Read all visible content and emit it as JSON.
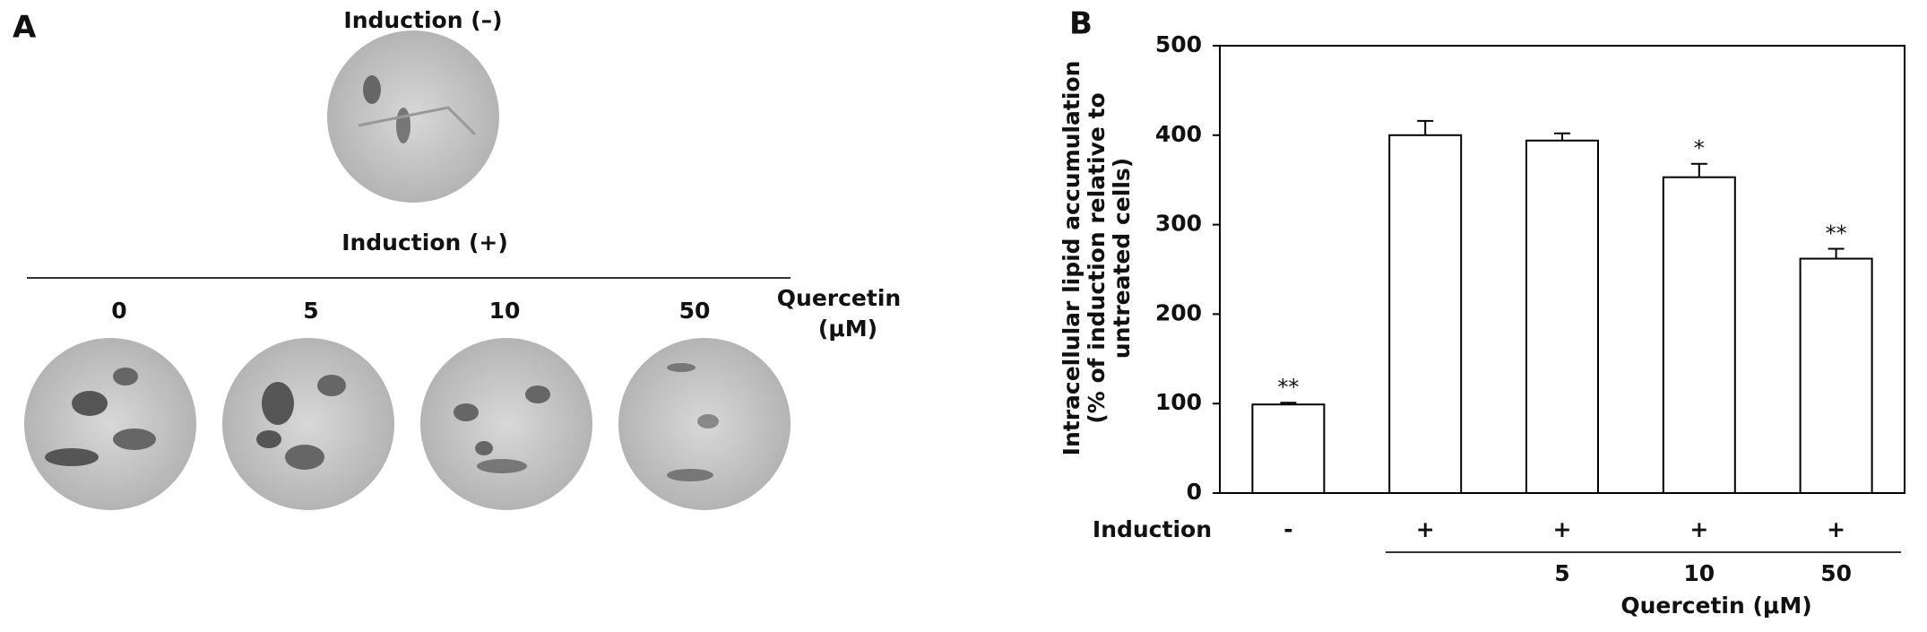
{
  "panel_a": {
    "label": "A",
    "top_label": "Induction (–)",
    "bottom_label": "Induction (+)",
    "concentrations": [
      "0",
      "5",
      "10",
      "50"
    ],
    "quercetin_label": [
      "Quercetin",
      "(μM)"
    ]
  },
  "chart_data": {
    "type": "bar",
    "panel_label": "B",
    "y_label": [
      "Intracellular lipid accumulation",
      "(% of induction relative to",
      "untreated cells)"
    ],
    "induction_label": "Induction",
    "categories": [
      "-",
      "+",
      "+",
      "+",
      "+"
    ],
    "quercetin": [
      null,
      null,
      "5",
      "10",
      "50"
    ],
    "x_label": "Quercetin (μM)",
    "values": [
      99,
      400,
      394,
      353,
      262
    ],
    "errors": [
      2,
      16,
      8,
      15,
      11
    ],
    "annotations": [
      "**",
      null,
      null,
      "*",
      "**"
    ],
    "color": "#ffffff",
    "ylim": [
      0,
      500
    ],
    "yticks": [
      0,
      100,
      200,
      300,
      400,
      500
    ],
    "grid": false
  }
}
